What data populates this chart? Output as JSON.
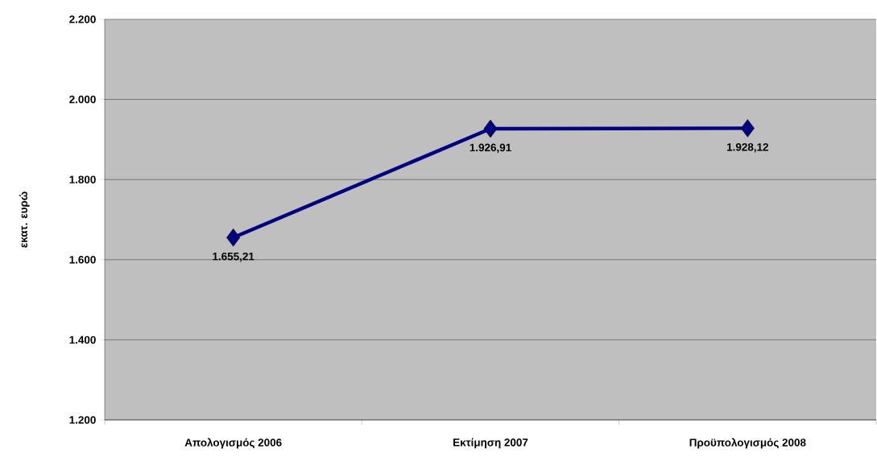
{
  "chart_data": {
    "type": "line",
    "ylabel": "εκατ. ευρώ",
    "categories": [
      "Απολογισμός 2006",
      "Εκτίμηση 2007",
      "Προϋπολογισμός 2008"
    ],
    "series": [
      {
        "color": "#000080",
        "values": [
          1655.21,
          1926.91,
          1928.12
        ],
        "value_labels": [
          "1.655,21",
          "1.926,91",
          "1.928,12"
        ]
      }
    ],
    "ylim": [
      1200,
      2200
    ],
    "yticks": [
      {
        "value": 1200,
        "label": "1.200"
      },
      {
        "value": 1400,
        "label": "1.400"
      },
      {
        "value": 1600,
        "label": "1.600"
      },
      {
        "value": 1800,
        "label": "1.800"
      },
      {
        "value": 2000,
        "label": "2.000"
      },
      {
        "value": 2200,
        "label": "2.200"
      }
    ],
    "grid": "y",
    "marker": "diamond",
    "line_style": "solid"
  }
}
